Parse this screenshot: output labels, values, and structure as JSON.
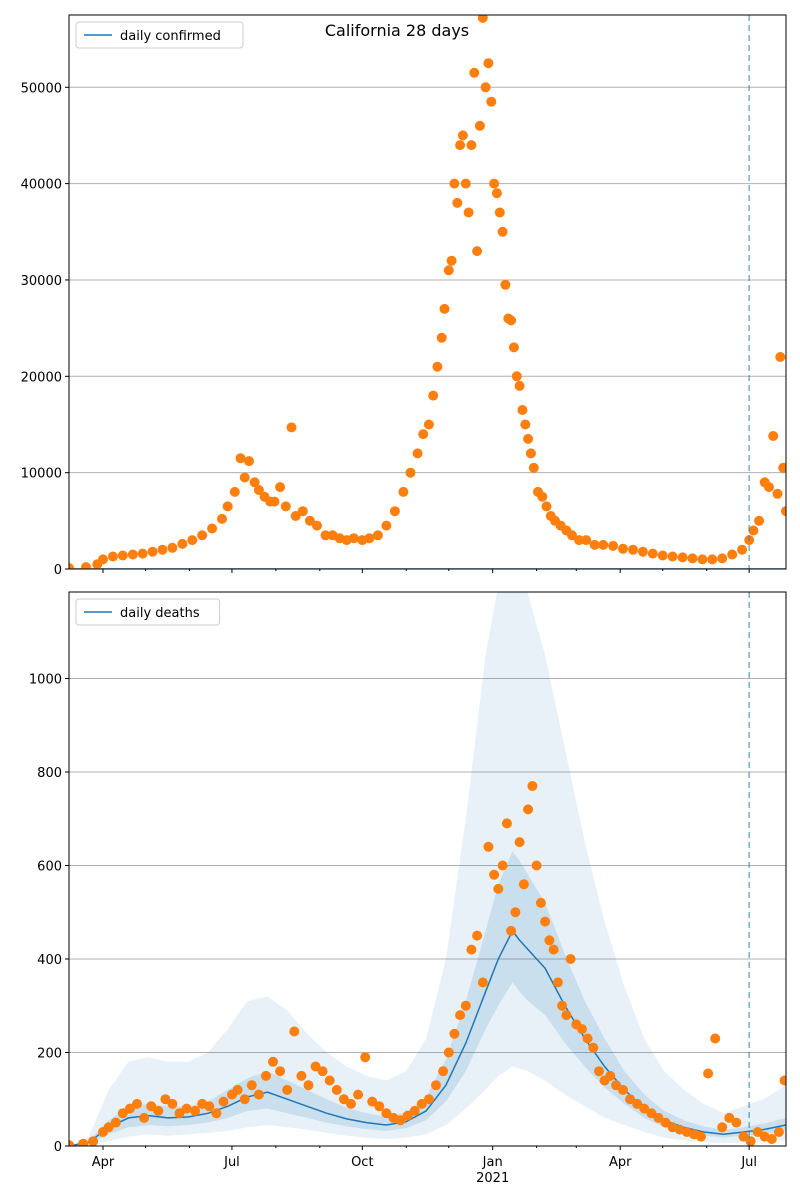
{
  "figure_title": "California 28 days",
  "chart_data": [
    {
      "type": "scatter",
      "legend": [
        "daily confirmed"
      ],
      "legend_position": "top-left",
      "y_ticks": [
        0,
        10000,
        20000,
        30000,
        40000,
        50000
      ],
      "ylim": [
        0,
        57500
      ],
      "xlim": [
        "2020-03-08",
        "2021-07-27"
      ],
      "grid": "horizontal",
      "forecast_marker_date": "2021-07-01",
      "series": [
        {
          "name": "daily confirmed",
          "kind": "line",
          "color": "#1f77b4",
          "x": [
            "2020-03-08",
            "2021-07-27"
          ],
          "y": [
            0,
            0
          ]
        },
        {
          "kind": "points",
          "color": "#ff7f0e",
          "x": [
            "2020-03-08",
            "2020-03-20",
            "2020-03-28",
            "2020-04-01",
            "2020-04-08",
            "2020-04-15",
            "2020-04-22",
            "2020-04-29",
            "2020-05-06",
            "2020-05-13",
            "2020-05-20",
            "2020-05-27",
            "2020-06-03",
            "2020-06-10",
            "2020-06-17",
            "2020-06-24",
            "2020-06-28",
            "2020-07-03",
            "2020-07-07",
            "2020-07-10",
            "2020-07-13",
            "2020-07-17",
            "2020-07-20",
            "2020-07-24",
            "2020-07-28",
            "2020-07-31",
            "2020-08-04",
            "2020-08-08",
            "2020-08-12",
            "2020-08-15",
            "2020-08-20",
            "2020-08-25",
            "2020-08-30",
            "2020-09-05",
            "2020-09-10",
            "2020-09-15",
            "2020-09-20",
            "2020-09-25",
            "2020-10-01",
            "2020-10-06",
            "2020-10-12",
            "2020-10-18",
            "2020-10-24",
            "2020-10-30",
            "2020-11-04",
            "2020-11-09",
            "2020-11-13",
            "2020-11-17",
            "2020-11-20",
            "2020-11-23",
            "2020-11-26",
            "2020-11-28",
            "2020-12-01",
            "2020-12-03",
            "2020-12-05",
            "2020-12-07",
            "2020-12-09",
            "2020-12-11",
            "2020-12-13",
            "2020-12-15",
            "2020-12-17",
            "2020-12-19",
            "2020-12-21",
            "2020-12-23",
            "2020-12-25",
            "2020-12-27",
            "2020-12-29",
            "2020-12-31",
            "2021-01-02",
            "2021-01-04",
            "2021-01-06",
            "2021-01-08",
            "2021-01-10",
            "2021-01-12",
            "2021-01-14",
            "2021-01-16",
            "2021-01-18",
            "2021-01-20",
            "2021-01-22",
            "2021-01-24",
            "2021-01-26",
            "2021-01-28",
            "2021-01-30",
            "2021-02-02",
            "2021-02-05",
            "2021-02-08",
            "2021-02-11",
            "2021-02-14",
            "2021-02-18",
            "2021-02-22",
            "2021-02-26",
            "2021-03-03",
            "2021-03-08",
            "2021-03-14",
            "2021-03-20",
            "2021-03-27",
            "2021-04-03",
            "2021-04-10",
            "2021-04-17",
            "2021-04-24",
            "2021-05-01",
            "2021-05-08",
            "2021-05-15",
            "2021-05-22",
            "2021-05-29",
            "2021-06-05",
            "2021-06-12",
            "2021-06-19",
            "2021-06-26",
            "2021-07-01",
            "2021-07-04",
            "2021-07-08",
            "2021-07-12",
            "2021-07-15",
            "2021-07-18",
            "2021-07-21",
            "2021-07-23",
            "2021-07-25",
            "2021-07-27"
          ],
          "y": [
            100,
            200,
            500,
            1000,
            1300,
            1400,
            1500,
            1600,
            1800,
            2000,
            2200,
            2600,
            3000,
            3500,
            4200,
            5200,
            6500,
            8000,
            11500,
            9500,
            11200,
            9000,
            8200,
            7500,
            7000,
            7000,
            8500,
            6500,
            14700,
            5500,
            6000,
            5000,
            4500,
            3500,
            3500,
            3200,
            3000,
            3200,
            3000,
            3200,
            3500,
            4500,
            6000,
            8000,
            10000,
            12000,
            14000,
            15000,
            18000,
            21000,
            24000,
            27000,
            31000,
            32000,
            40000,
            38000,
            44000,
            45000,
            40000,
            37000,
            44000,
            51500,
            33000,
            46000,
            57200,
            50000,
            52500,
            48500,
            40000,
            39000,
            37000,
            35000,
            29500,
            26000,
            25800,
            23000,
            20000,
            19000,
            16500,
            15000,
            13500,
            12000,
            10500,
            8000,
            7500,
            6500,
            5500,
            5000,
            4500,
            4000,
            3500,
            3000,
            3000,
            2500,
            2500,
            2400,
            2100,
            2000,
            1800,
            1600,
            1400,
            1300,
            1200,
            1100,
            1000,
            1000,
            1100,
            1500,
            2000,
            3000,
            4000,
            5000,
            9000,
            8500,
            13800,
            7800,
            22000,
            10500,
            6000
          ]
        }
      ]
    },
    {
      "type": "scatter",
      "legend": [
        "daily deaths"
      ],
      "legend_position": "top-left",
      "y_ticks": [
        0,
        200,
        400,
        600,
        800,
        1000
      ],
      "ylim": [
        0,
        1185
      ],
      "xlim": [
        "2020-03-08",
        "2021-07-27"
      ],
      "grid": "horizontal",
      "forecast_marker_date": "2021-07-01",
      "x_tick_labels": [
        "Apr",
        "Jul",
        "Oct",
        "Jan",
        "Apr",
        "Jul"
      ],
      "x_tick_dates": [
        "2020-04-01",
        "2020-07-01",
        "2020-10-01",
        "2021-01-01",
        "2021-04-01",
        "2021-07-01"
      ],
      "x_year_label": "2021",
      "series": [
        {
          "name": "daily deaths",
          "kind": "line",
          "color": "#1f77b4",
          "x": [
            "2020-03-08",
            "2020-03-22",
            "2020-04-05",
            "2020-04-19",
            "2020-05-03",
            "2020-05-17",
            "2020-05-31",
            "2020-06-14",
            "2020-06-28",
            "2020-07-12",
            "2020-07-26",
            "2020-08-09",
            "2020-08-23",
            "2020-09-06",
            "2020-09-20",
            "2020-10-04",
            "2020-10-18",
            "2020-11-01",
            "2020-11-15",
            "2020-11-29",
            "2020-12-13",
            "2020-12-27",
            "2021-01-05",
            "2021-01-15",
            "2021-01-20",
            "2021-01-26",
            "2021-02-07",
            "2021-02-21",
            "2021-03-07",
            "2021-03-21",
            "2021-04-04",
            "2021-04-18",
            "2021-05-02",
            "2021-05-16",
            "2021-05-30",
            "2021-06-13",
            "2021-06-27",
            "2021-07-11",
            "2021-07-27"
          ],
          "y": [
            0,
            8,
            40,
            60,
            65,
            60,
            62,
            70,
            85,
            105,
            115,
            100,
            85,
            70,
            58,
            50,
            45,
            52,
            75,
            130,
            220,
            330,
            400,
            460,
            440,
            420,
            380,
            300,
            230,
            170,
            120,
            80,
            55,
            40,
            30,
            25,
            30,
            35,
            45
          ]
        },
        {
          "kind": "band",
          "level": "inner",
          "color": "#1f77b4",
          "x": [
            "2020-03-08",
            "2020-03-22",
            "2020-04-05",
            "2020-04-19",
            "2020-05-03",
            "2020-05-17",
            "2020-05-31",
            "2020-06-14",
            "2020-06-28",
            "2020-07-12",
            "2020-07-26",
            "2020-08-09",
            "2020-08-23",
            "2020-09-06",
            "2020-09-20",
            "2020-10-04",
            "2020-10-18",
            "2020-11-01",
            "2020-11-15",
            "2020-11-29",
            "2020-12-13",
            "2020-12-27",
            "2021-01-05",
            "2021-01-15",
            "2021-01-20",
            "2021-01-26",
            "2021-02-07",
            "2021-02-21",
            "2021-03-07",
            "2021-03-21",
            "2021-04-04",
            "2021-04-18",
            "2021-05-02",
            "2021-05-16",
            "2021-05-30",
            "2021-06-13",
            "2021-06-27",
            "2021-07-11",
            "2021-07-27"
          ],
          "lower": [
            0,
            4,
            25,
            40,
            45,
            42,
            45,
            50,
            60,
            75,
            80,
            70,
            60,
            50,
            42,
            36,
            32,
            38,
            55,
            95,
            160,
            250,
            300,
            350,
            330,
            310,
            280,
            220,
            170,
            125,
            90,
            60,
            40,
            30,
            22,
            18,
            22,
            25,
            32
          ],
          "upper": [
            0,
            12,
            55,
            85,
            90,
            85,
            85,
            95,
            120,
            145,
            160,
            140,
            120,
            100,
            82,
            70,
            63,
            72,
            105,
            185,
            310,
            460,
            560,
            630,
            610,
            580,
            520,
            410,
            310,
            230,
            160,
            110,
            75,
            55,
            42,
            34,
            40,
            48,
            60
          ]
        },
        {
          "kind": "band",
          "level": "outer",
          "color": "#1f77b4",
          "x": [
            "2020-03-08",
            "2020-03-22",
            "2020-04-05",
            "2020-04-19",
            "2020-05-03",
            "2020-05-17",
            "2020-05-31",
            "2020-06-14",
            "2020-06-28",
            "2020-07-12",
            "2020-07-26",
            "2020-08-09",
            "2020-08-23",
            "2020-09-06",
            "2020-09-20",
            "2020-10-04",
            "2020-10-18",
            "2020-11-01",
            "2020-11-15",
            "2020-11-29",
            "2020-12-13",
            "2020-12-27",
            "2021-01-05",
            "2021-01-15",
            "2021-01-20",
            "2021-01-26",
            "2021-02-07",
            "2021-02-21",
            "2021-03-07",
            "2021-03-21",
            "2021-04-04",
            "2021-04-18",
            "2021-05-02",
            "2021-05-16",
            "2021-05-30",
            "2021-06-13",
            "2021-06-27",
            "2021-07-11",
            "2021-07-27"
          ],
          "lower": [
            0,
            1,
            10,
            20,
            25,
            22,
            25,
            28,
            32,
            40,
            45,
            40,
            35,
            28,
            22,
            18,
            15,
            18,
            25,
            45,
            80,
            120,
            150,
            170,
            165,
            160,
            140,
            110,
            85,
            60,
            45,
            30,
            18,
            12,
            8,
            6,
            8,
            10,
            12
          ],
          "upper": [
            0,
            20,
            120,
            180,
            190,
            180,
            180,
            200,
            250,
            310,
            320,
            290,
            240,
            200,
            170,
            150,
            140,
            160,
            230,
            400,
            700,
            1050,
            1200,
            1250,
            1220,
            1180,
            1050,
            850,
            650,
            480,
            340,
            230,
            160,
            120,
            90,
            70,
            85,
            100,
            130
          ]
        },
        {
          "kind": "points",
          "color": "#ff7f0e",
          "x": [
            "2020-03-08",
            "2020-03-18",
            "2020-03-25",
            "2020-04-01",
            "2020-04-05",
            "2020-04-10",
            "2020-04-15",
            "2020-04-20",
            "2020-04-25",
            "2020-04-30",
            "2020-05-05",
            "2020-05-10",
            "2020-05-15",
            "2020-05-20",
            "2020-05-25",
            "2020-05-30",
            "2020-06-05",
            "2020-06-10",
            "2020-06-15",
            "2020-06-20",
            "2020-06-25",
            "2020-07-01",
            "2020-07-05",
            "2020-07-10",
            "2020-07-15",
            "2020-07-20",
            "2020-07-25",
            "2020-07-30",
            "2020-08-04",
            "2020-08-09",
            "2020-08-14",
            "2020-08-19",
            "2020-08-24",
            "2020-08-29",
            "2020-09-03",
            "2020-09-08",
            "2020-09-13",
            "2020-09-18",
            "2020-09-23",
            "2020-09-28",
            "2020-10-03",
            "2020-10-08",
            "2020-10-13",
            "2020-10-18",
            "2020-10-23",
            "2020-10-28",
            "2020-11-02",
            "2020-11-07",
            "2020-11-12",
            "2020-11-17",
            "2020-11-22",
            "2020-11-27",
            "2020-12-01",
            "2020-12-05",
            "2020-12-09",
            "2020-12-13",
            "2020-12-17",
            "2020-12-21",
            "2020-12-25",
            "2020-12-29",
            "2021-01-02",
            "2021-01-05",
            "2021-01-08",
            "2021-01-11",
            "2021-01-14",
            "2021-01-17",
            "2021-01-20",
            "2021-01-23",
            "2021-01-26",
            "2021-01-29",
            "2021-02-01",
            "2021-02-04",
            "2021-02-07",
            "2021-02-10",
            "2021-02-13",
            "2021-02-16",
            "2021-02-19",
            "2021-02-22",
            "2021-02-25",
            "2021-03-01",
            "2021-03-05",
            "2021-03-09",
            "2021-03-13",
            "2021-03-17",
            "2021-03-21",
            "2021-03-25",
            "2021-03-29",
            "2021-04-03",
            "2021-04-08",
            "2021-04-13",
            "2021-04-18",
            "2021-04-23",
            "2021-04-28",
            "2021-05-03",
            "2021-05-08",
            "2021-05-13",
            "2021-05-18",
            "2021-05-23",
            "2021-05-28",
            "2021-06-02",
            "2021-06-07",
            "2021-06-12",
            "2021-06-17",
            "2021-06-22",
            "2021-06-27",
            "2021-07-02",
            "2021-07-07",
            "2021-07-12",
            "2021-07-17",
            "2021-07-22",
            "2021-07-26"
          ],
          "y": [
            2,
            5,
            10,
            30,
            40,
            50,
            70,
            80,
            90,
            60,
            85,
            75,
            100,
            90,
            70,
            80,
            75,
            90,
            85,
            70,
            95,
            110,
            120,
            100,
            130,
            110,
            150,
            180,
            160,
            120,
            245,
            150,
            130,
            170,
            160,
            140,
            120,
            100,
            90,
            110,
            190,
            95,
            85,
            70,
            60,
            55,
            65,
            75,
            90,
            100,
            130,
            160,
            200,
            240,
            280,
            300,
            420,
            450,
            350,
            640,
            580,
            550,
            600,
            690,
            460,
            500,
            650,
            560,
            720,
            770,
            600,
            520,
            480,
            440,
            420,
            350,
            300,
            280,
            400,
            260,
            250,
            230,
            210,
            160,
            140,
            150,
            130,
            120,
            100,
            90,
            80,
            70,
            60,
            50,
            40,
            35,
            30,
            25,
            20,
            155,
            230,
            40,
            60,
            50,
            20,
            10,
            30,
            20,
            15,
            30,
            140
          ]
        }
      ]
    }
  ]
}
